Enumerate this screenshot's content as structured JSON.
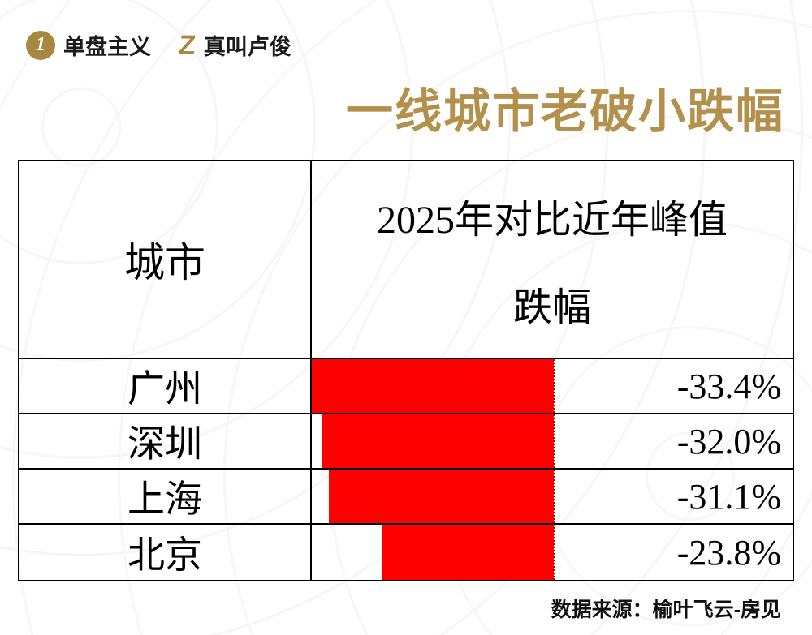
{
  "brand": {
    "logo1_icon": "1",
    "logo1_text": "单盘主义",
    "logo2_icon": "Z",
    "logo2_text": "真叫卢俊"
  },
  "title": "一线城市老破小跌幅",
  "table": {
    "col1_header": "城市",
    "col2_header_line1": "2025年对比近年峰值",
    "col2_header_line2": "跌幅",
    "rows": [
      {
        "city": "广州",
        "value": "-33.4%",
        "pct": 33.4
      },
      {
        "city": "深圳",
        "value": "-32.0%",
        "pct": 32.0
      },
      {
        "city": "上海",
        "value": "-31.1%",
        "pct": 31.1
      },
      {
        "city": "北京",
        "value": "-23.8%",
        "pct": 23.8
      }
    ]
  },
  "source": "数据来源：榆叶飞云-房见",
  "colors": {
    "accent_gold": "#b3904c",
    "bar_red": "#ff0000",
    "border_black": "#000000"
  },
  "chart_data": {
    "type": "bar",
    "orientation": "horizontal",
    "title": "一线城市老破小跌幅",
    "series_name": "2025年对比近年峰值跌幅",
    "categories": [
      "广州",
      "深圳",
      "上海",
      "北京"
    ],
    "values": [
      -33.4,
      -32.0,
      -31.1,
      -23.8
    ],
    "value_labels": [
      "-33.4%",
      "-32.0%",
      "-31.1%",
      "-23.8%"
    ],
    "bar_color": "#ff0000",
    "scale_max_abs": 33.4,
    "grid": false,
    "legend": false,
    "source": "数据来源：榆叶飞云-房见"
  }
}
